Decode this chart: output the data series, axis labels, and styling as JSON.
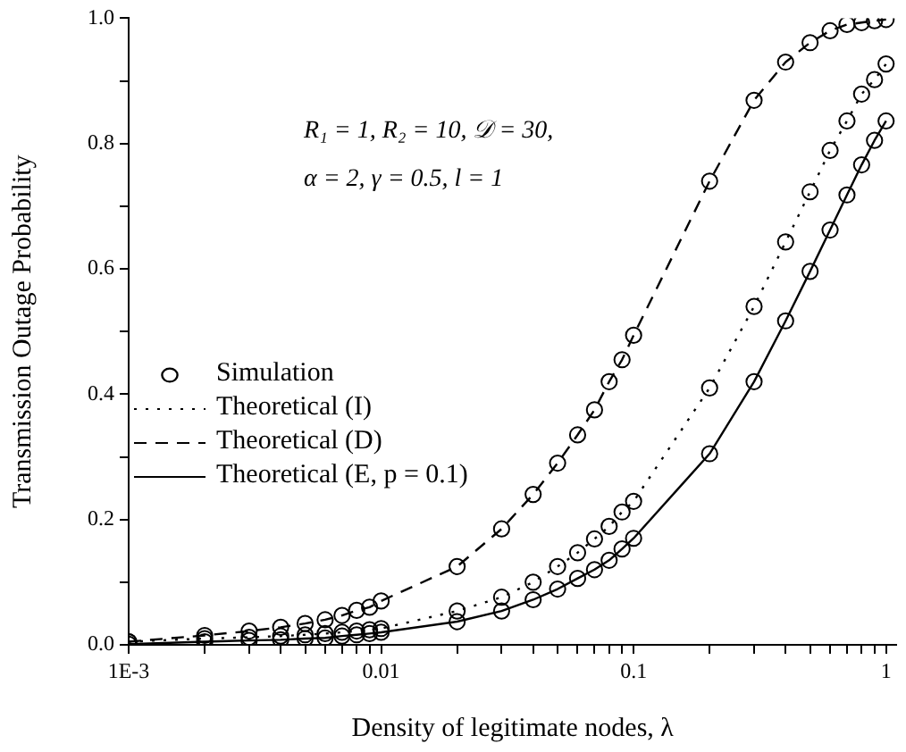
{
  "chart_data": {
    "type": "line",
    "xlabel": "Density of legitimate nodes, λ",
    "ylabel": "Transmission Outage Probability",
    "log": "x",
    "xlim": [
      0.001,
      1.1
    ],
    "ylim": [
      0,
      1
    ],
    "xticks": [
      {
        "value": 0.001,
        "label": "1E-3"
      },
      {
        "value": 0.002,
        "label": null
      },
      {
        "value": 0.003,
        "label": null
      },
      {
        "value": 0.004,
        "label": null
      },
      {
        "value": 0.005,
        "label": null
      },
      {
        "value": 0.006,
        "label": null
      },
      {
        "value": 0.007,
        "label": null
      },
      {
        "value": 0.008,
        "label": null
      },
      {
        "value": 0.009,
        "label": null
      },
      0.01,
      {
        "value": 0.02,
        "label": null
      },
      {
        "value": 0.03,
        "label": null
      },
      {
        "value": 0.04,
        "label": null
      },
      {
        "value": 0.05,
        "label": null
      },
      {
        "value": 0.06,
        "label": null
      },
      {
        "value": 0.07,
        "label": null
      },
      {
        "value": 0.08,
        "label": null
      },
      {
        "value": 0.09,
        "label": null
      },
      0.1,
      {
        "value": 0.2,
        "label": null
      },
      {
        "value": 0.3,
        "label": null
      },
      {
        "value": 0.4,
        "label": null
      },
      {
        "value": 0.5,
        "label": null
      },
      {
        "value": 0.6,
        "label": null
      },
      {
        "value": 0.7,
        "label": null
      },
      {
        "value": 0.8,
        "label": null
      },
      {
        "value": 0.9,
        "label": null
      },
      1
    ],
    "yticks": [
      {
        "value": 0,
        "label": "0.0"
      },
      {
        "value": 0.1,
        "label": null
      },
      {
        "value": 0.2,
        "label": "0.2"
      },
      {
        "value": 0.3,
        "label": null
      },
      {
        "value": 0.4,
        "label": "0.4"
      },
      {
        "value": 0.5,
        "label": null
      },
      {
        "value": 0.6,
        "label": "0.6"
      },
      {
        "value": 0.7,
        "label": null
      },
      {
        "value": 0.8,
        "label": "0.8"
      },
      {
        "value": 0.9,
        "label": null
      },
      {
        "value": 1,
        "label": "1.0"
      }
    ],
    "grid": false,
    "legend": "left",
    "annotations": [
      "R₁ = 1, R₂ = 10, 𝒟 = 30,",
      "α = 2, γ = 0.5, l = 1"
    ],
    "series": [
      {
        "name": "Simulation",
        "type": "scatter",
        "marker": "circle",
        "color": "#000000",
        "x": [
          0.001,
          0.002,
          0.003,
          0.004,
          0.005,
          0.006,
          0.007,
          0.008,
          0.009,
          0.01,
          0.02,
          0.03,
          0.04,
          0.05,
          0.06,
          0.07,
          0.08,
          0.09,
          0.1,
          0.2,
          0.3,
          0.4,
          0.5,
          0.6,
          0.7,
          0.8,
          0.9,
          1,
          0.001,
          0.002,
          0.003,
          0.004,
          0.005,
          0.006,
          0.007,
          0.008,
          0.009,
          0.01,
          0.02,
          0.03,
          0.04,
          0.05,
          0.06,
          0.07,
          0.08,
          0.09,
          0.1,
          0.2,
          0.3,
          0.4,
          0.5,
          0.6,
          0.7,
          0.8,
          0.9,
          1,
          0.001,
          0.002,
          0.003,
          0.004,
          0.005,
          0.006,
          0.007,
          0.008,
          0.009,
          0.01,
          0.02,
          0.03,
          0.04,
          0.05,
          0.06,
          0.07,
          0.08,
          0.09,
          0.1,
          0.2,
          0.3,
          0.4,
          0.5,
          0.6,
          0.7,
          0.8,
          0.9,
          1
        ],
        "values": [
          0.005,
          0.01,
          0.012,
          0.014,
          0.016,
          0.018,
          0.02,
          0.022,
          0.024,
          0.026,
          0.054,
          0.076,
          0.1,
          0.125,
          0.147,
          0.169,
          0.189,
          0.212,
          0.229,
          0.41,
          0.54,
          0.643,
          0.723,
          0.789,
          0.836,
          0.879,
          0.902,
          0.927,
          0.005,
          0.015,
          0.022,
          0.028,
          0.034,
          0.04,
          0.047,
          0.055,
          0.06,
          0.07,
          0.125,
          0.185,
          0.24,
          0.29,
          0.335,
          0.375,
          0.42,
          0.455,
          0.494,
          0.74,
          0.869,
          0.93,
          0.961,
          0.98,
          0.99,
          0.993,
          0.996,
          0.998,
          0.001,
          0.005,
          0.007,
          0.008,
          0.01,
          0.011,
          0.014,
          0.016,
          0.018,
          0.02,
          0.037,
          0.054,
          0.072,
          0.089,
          0.106,
          0.12,
          0.135,
          0.153,
          0.17,
          0.305,
          0.42,
          0.517,
          0.596,
          0.662,
          0.718,
          0.766,
          0.805,
          0.836
        ]
      },
      {
        "name": "Theoretical (I)",
        "type": "line",
        "marker": "none",
        "line_style": "dotted",
        "color": "#000000",
        "x": [
          0.001,
          0.002,
          0.003,
          0.004,
          0.005,
          0.006,
          0.007,
          0.008,
          0.009,
          0.01,
          0.02,
          0.03,
          0.04,
          0.05,
          0.06,
          0.07,
          0.08,
          0.09,
          0.1,
          0.2,
          0.3,
          0.4,
          0.5,
          0.6,
          0.7,
          0.8,
          0.9,
          1
        ],
        "values": [
          0.005,
          0.01,
          0.012,
          0.014,
          0.016,
          0.018,
          0.02,
          0.022,
          0.024,
          0.026,
          0.054,
          0.076,
          0.1,
          0.125,
          0.147,
          0.169,
          0.189,
          0.212,
          0.229,
          0.41,
          0.54,
          0.643,
          0.723,
          0.789,
          0.836,
          0.879,
          0.902,
          0.927
        ]
      },
      {
        "name": "Theoretical (D)",
        "type": "line",
        "marker": "none",
        "line_style": "dashed",
        "color": "#000000",
        "x": [
          0.001,
          0.002,
          0.003,
          0.004,
          0.005,
          0.006,
          0.007,
          0.008,
          0.009,
          0.01,
          0.02,
          0.03,
          0.04,
          0.05,
          0.06,
          0.07,
          0.08,
          0.09,
          0.1,
          0.2,
          0.3,
          0.4,
          0.5,
          0.6,
          0.7,
          0.8,
          0.9,
          1
        ],
        "values": [
          0.005,
          0.015,
          0.022,
          0.028,
          0.034,
          0.04,
          0.047,
          0.055,
          0.06,
          0.07,
          0.125,
          0.185,
          0.24,
          0.29,
          0.335,
          0.375,
          0.42,
          0.455,
          0.494,
          0.74,
          0.869,
          0.93,
          0.961,
          0.98,
          0.99,
          0.993,
          0.996,
          0.998
        ]
      },
      {
        "name": "Theoretical (E, p = 0.1)",
        "type": "line",
        "marker": "none",
        "line_style": "solid",
        "color": "#000000",
        "x": [
          0.001,
          0.002,
          0.003,
          0.004,
          0.005,
          0.006,
          0.007,
          0.008,
          0.009,
          0.01,
          0.02,
          0.03,
          0.04,
          0.05,
          0.06,
          0.07,
          0.08,
          0.09,
          0.1,
          0.2,
          0.3,
          0.4,
          0.5,
          0.6,
          0.7,
          0.8,
          0.9,
          1
        ],
        "values": [
          0.001,
          0.005,
          0.007,
          0.008,
          0.01,
          0.011,
          0.014,
          0.016,
          0.018,
          0.02,
          0.037,
          0.054,
          0.072,
          0.089,
          0.106,
          0.12,
          0.135,
          0.153,
          0.17,
          0.305,
          0.42,
          0.517,
          0.596,
          0.662,
          0.718,
          0.766,
          0.805,
          0.836
        ]
      }
    ]
  }
}
